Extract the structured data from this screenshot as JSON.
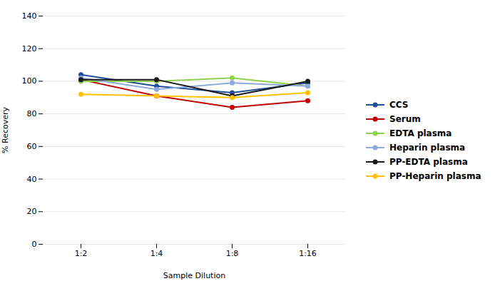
{
  "chart_data": {
    "type": "line",
    "xlabel": "Sample Dilution",
    "ylabel": "% Recovery",
    "categories": [
      "1:2",
      "1:4",
      "1:8",
      "1:16"
    ],
    "series": [
      {
        "name": "CCS",
        "color": "#1f4e9a",
        "values": [
          104,
          97,
          93,
          99
        ]
      },
      {
        "name": "Serum",
        "color": "#c00000",
        "values": [
          101,
          91,
          84,
          88
        ]
      },
      {
        "name": "EDTA plasma",
        "color": "#92d050",
        "values": [
          100,
          100,
          102,
          97
        ]
      },
      {
        "name": "Heparin plasma",
        "color": "#8ea9db",
        "values": [
          102,
          95,
          99,
          97
        ]
      },
      {
        "name": "PP-EDTA plasma",
        "color": "#1a1a1a",
        "values": [
          101,
          101,
          91,
          100
        ]
      },
      {
        "name": "PP-Heparin plasma",
        "color": "#ffc000",
        "values": [
          92,
          91,
          90,
          93
        ]
      }
    ],
    "ylim": [
      0,
      140
    ],
    "yticks": [
      0,
      20,
      40,
      60,
      80,
      100,
      120,
      140
    ],
    "grid": true,
    "legend": "right",
    "marker": "circle"
  }
}
